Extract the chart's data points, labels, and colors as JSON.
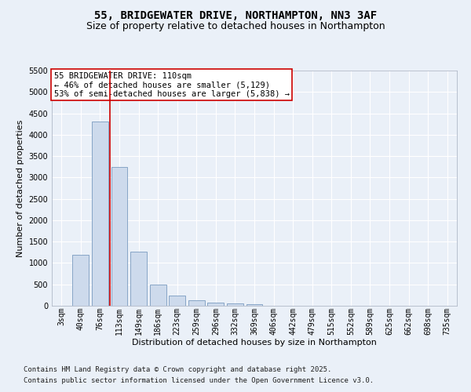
{
  "title_line1": "55, BRIDGEWATER DRIVE, NORTHAMPTON, NN3 3AF",
  "title_line2": "Size of property relative to detached houses in Northampton",
  "xlabel": "Distribution of detached houses by size in Northampton",
  "ylabel": "Number of detached properties",
  "categories": [
    "3sqm",
    "40sqm",
    "76sqm",
    "113sqm",
    "149sqm",
    "186sqm",
    "223sqm",
    "259sqm",
    "296sqm",
    "332sqm",
    "369sqm",
    "406sqm",
    "442sqm",
    "479sqm",
    "515sqm",
    "552sqm",
    "589sqm",
    "625sqm",
    "662sqm",
    "698sqm",
    "735sqm"
  ],
  "values": [
    0,
    1200,
    4300,
    3250,
    1270,
    500,
    230,
    120,
    80,
    50,
    30,
    0,
    0,
    0,
    0,
    0,
    0,
    0,
    0,
    0,
    0
  ],
  "bar_color": "#cddaec",
  "bar_edge_color": "#7a9bbf",
  "vline_color": "#cc0000",
  "annotation_box_text": "55 BRIDGEWATER DRIVE: 110sqm\n← 46% of detached houses are smaller (5,129)\n53% of semi-detached houses are larger (5,838) →",
  "ylim": [
    0,
    5500
  ],
  "yticks": [
    0,
    500,
    1000,
    1500,
    2000,
    2500,
    3000,
    3500,
    4000,
    4500,
    5000,
    5500
  ],
  "footer_line1": "Contains HM Land Registry data © Crown copyright and database right 2025.",
  "footer_line2": "Contains public sector information licensed under the Open Government Licence v3.0.",
  "bg_color": "#eaf0f8",
  "grid_color": "#ffffff",
  "title_fontsize": 10,
  "subtitle_fontsize": 9,
  "axis_label_fontsize": 8,
  "tick_fontsize": 7,
  "annotation_fontsize": 7.5,
  "footer_fontsize": 6.5
}
